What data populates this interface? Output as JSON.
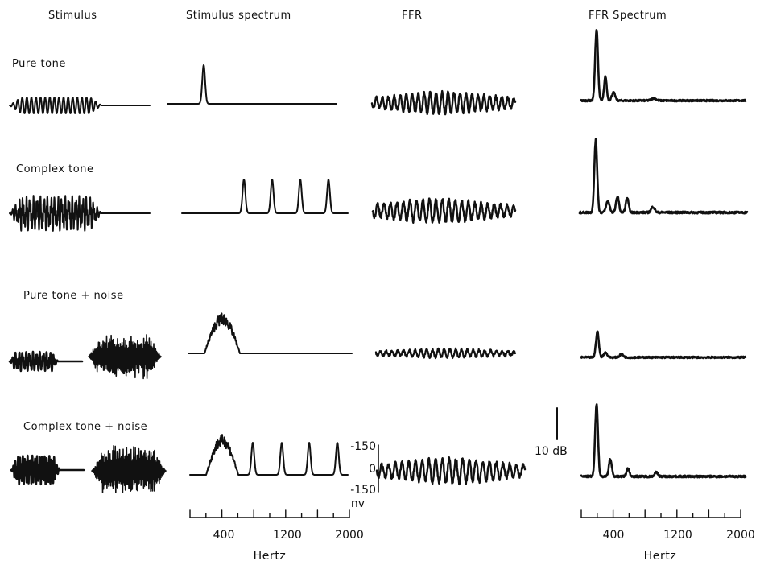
{
  "headers": {
    "stimulus": "Stimulus",
    "stimulus_spectrum": "Stimulus spectrum",
    "ffr": "FFR",
    "ffr_spectrum": "FFR Spectrum"
  },
  "rows": [
    {
      "label": "Pure tone",
      "type": "pure"
    },
    {
      "label": "Complex tone",
      "type": "complex"
    },
    {
      "label": "Pure tone + noise",
      "type": "pure_noise"
    },
    {
      "label": "Complex tone + noise",
      "type": "complex_noise"
    }
  ],
  "frequency_axis": {
    "ticks": [
      "400",
      "1200",
      "2000"
    ],
    "unit": "Hertz"
  },
  "ffr_scale": {
    "top": "-150",
    "mid": "0",
    "bottom": "-150",
    "unit": "nv"
  },
  "db_scale": "10 dB"
}
